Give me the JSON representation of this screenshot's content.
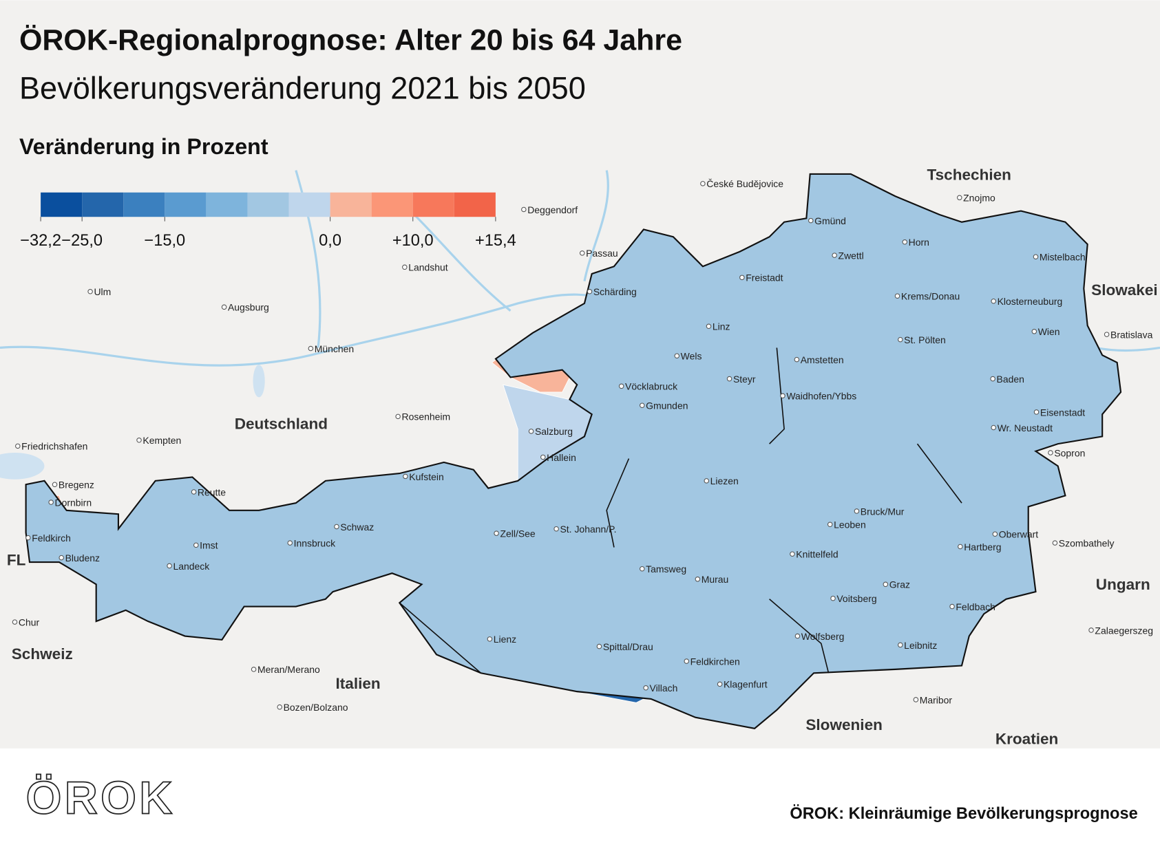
{
  "header": {
    "title": "ÖROK-Regionalprognose: Alter 20 bis 64 Jahre",
    "subtitle": "Bevölkerungsveränderung 2021 bis 2050"
  },
  "legend": {
    "title": "Veränderung in Prozent",
    "colors": [
      "#0a4f9e",
      "#2466ab",
      "#3b80bf",
      "#5a9bd0",
      "#7eb4dc",
      "#a2c7e2",
      "#bfd6ec",
      "#f8b49a",
      "#fb9677",
      "#f7785b",
      "#f26449"
    ],
    "ticks": [
      {
        "value": -32.2,
        "label": "−32,2"
      },
      {
        "value": -25,
        "label": "−25,0"
      },
      {
        "value": -15,
        "label": "−15,0"
      },
      {
        "value": 0,
        "label": "0,0"
      },
      {
        "value": 10,
        "label": "+10,0"
      },
      {
        "value": 15.4,
        "label": "+15,4"
      }
    ]
  },
  "countries": [
    "Tschechien",
    "Slowakei",
    "Deutschland",
    "Schweiz",
    "FL",
    "Italien",
    "Slowenien",
    "Kroatien",
    "Ungarn"
  ],
  "cities": [
    "Gmünd",
    "Horn",
    "Zwettl",
    "Znojmo",
    "Mistelbach",
    "Freistadt",
    "Schärding",
    "Krems/Donau",
    "Klosterneuburg",
    "Linz",
    "Wien",
    "St. Pölten",
    "Wels",
    "Amstetten",
    "Baden",
    "Steyr",
    "Vöcklabruck",
    "Waidhofen/Ybbs",
    "Gmunden",
    "Eisenstadt",
    "Wr. Neustadt",
    "Salzburg",
    "Hallein",
    "Sopron",
    "Kufstein",
    "Liezen",
    "Reutte",
    "Bregenz",
    "Dornbirn",
    "Bruck/Mur",
    "Schwaz",
    "Feldkirch",
    "Zell/See",
    "St. Johann/P.",
    "Oberwart",
    "Leoben",
    "Imst",
    "Innsbruck",
    "Hartberg",
    "Knittelfeld",
    "Bludenz",
    "Landeck",
    "Tamsweg",
    "Murau",
    "Graz",
    "Voitsberg",
    "Feldbach",
    "Lienz",
    "Wolfsberg",
    "Spittal/Drau",
    "Leibnitz",
    "Feldkirchen",
    "Klagenfurt",
    "Villach",
    "Deggendorf",
    "Passau",
    "Landshut",
    "Ulm",
    "Augsburg",
    "München",
    "Rosenheim",
    "Kempten",
    "Friedrichshafen",
    "Chur",
    "Meran/Merano",
    "Bozen/Bolzano",
    "Maribor",
    "Szombathely",
    "Zalaegerszeg",
    "Bratislava",
    "České Budějovice"
  ],
  "footer": {
    "logo": "ÖROK",
    "source": "ÖROK: Kleinräumige Bevölkerungsprognose"
  }
}
